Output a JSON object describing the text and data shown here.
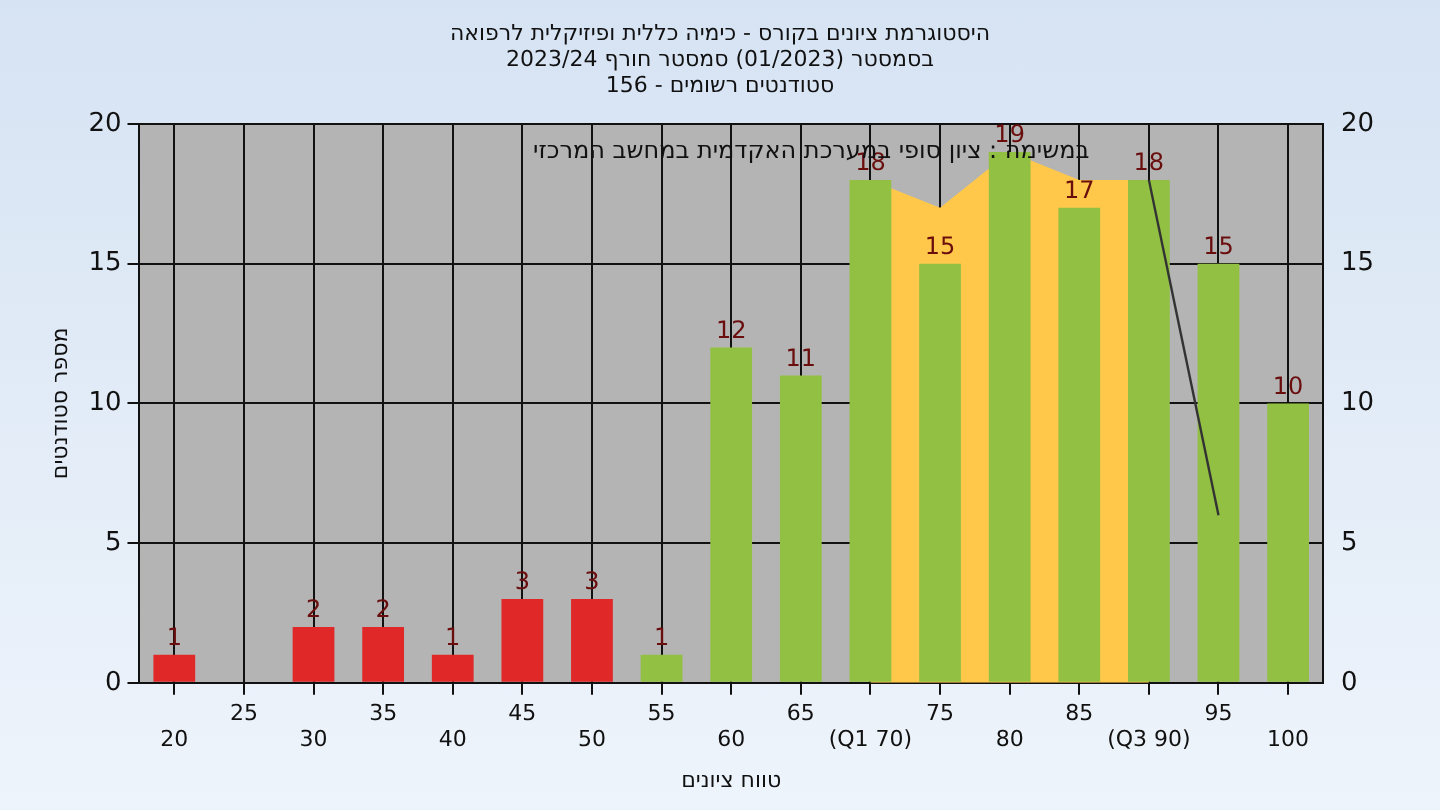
{
  "chart_data": {
    "type": "bar",
    "title": "היסטוגרמת ציונים בקורס - כימיה כללית ופיזיקלית לרפואה\nבסמסטר (01/2023) סמסטר חורף 2023/24\nסטודנטים רשומים - 156",
    "xlabel": "טווח ציונים",
    "ylabel": "מספר סטודנטים",
    "annotations": [
      "במשימה : ציון סופי במערכת האקדמית במחשב המרכזי"
    ],
    "categories": [
      "20",
      "25",
      "30",
      "35",
      "40",
      "45",
      "50",
      "55",
      "60",
      "65",
      "(Q1 70)",
      "75",
      "80",
      "85",
      "(Q3 90)",
      "95",
      "100"
    ],
    "series": [
      {
        "type": "area",
        "color": "#ffc84a",
        "values": [
          null,
          null,
          null,
          null,
          null,
          null,
          null,
          null,
          null,
          null,
          18,
          17,
          19,
          18,
          18,
          null,
          null
        ]
      },
      {
        "type": "line",
        "color": "#333333",
        "values": [
          null,
          null,
          null,
          null,
          null,
          null,
          null,
          null,
          null,
          null,
          null,
          null,
          null,
          null,
          18,
          6,
          null
        ]
      },
      {
        "colors": [
          "#e02828",
          "#e02828",
          "#e02828",
          "#e02828",
          "#e02828",
          "#e02828",
          "#e02828",
          "#92c043",
          "#92c043",
          "#92c043",
          "#92c043",
          "#92c043",
          "#92c043",
          "#92c043",
          "#92c043",
          "#92c043",
          "#92c043"
        ],
        "values": [
          1,
          0,
          2,
          2,
          1,
          3,
          3,
          1,
          12,
          11,
          18,
          15,
          19,
          17,
          18,
          15,
          10
        ],
        "value_labels": [
          "1",
          null,
          "2",
          "2",
          "1",
          "3",
          "3",
          "1",
          "12",
          "11",
          "18",
          "15",
          "19",
          "17",
          "18",
          "15",
          "10"
        ]
      }
    ],
    "ylim": [
      0,
      20
    ],
    "yticks": [
      0,
      5,
      10,
      15,
      20
    ],
    "y2lim": [
      0,
      20
    ],
    "y2ticks": [
      0,
      5,
      10,
      15,
      20
    ],
    "grid": true,
    "legend": false
  }
}
